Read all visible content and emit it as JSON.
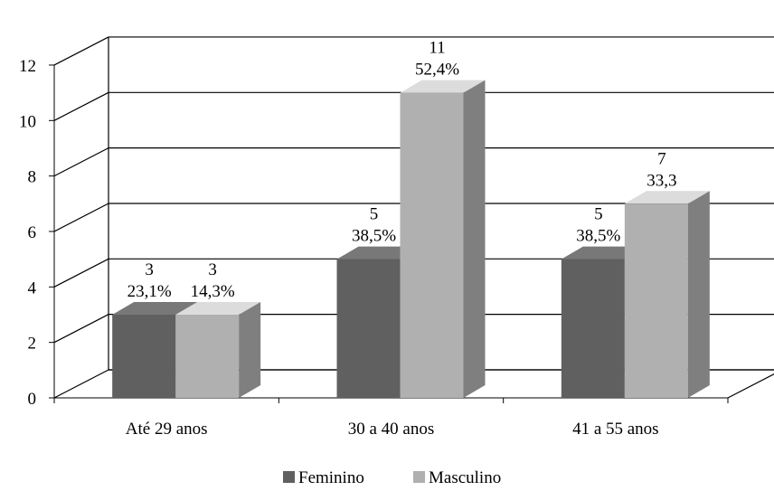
{
  "chart_data": {
    "type": "bar",
    "categories": [
      "Até 29 anos",
      "30 a 40 anos",
      "41 a 55 anos"
    ],
    "series": [
      {
        "name": "Feminino",
        "values": [
          3,
          5,
          5
        ],
        "labels": [
          "23,1%",
          "38,5%",
          "38,5%"
        ],
        "color": "#606060"
      },
      {
        "name": "Masculino",
        "values": [
          3,
          11,
          7
        ],
        "labels": [
          "14,3%",
          "52,4%",
          "33,3"
        ],
        "color": "#b0b0b0"
      }
    ],
    "yticks": [
      "0",
      "2",
      "4",
      "6",
      "8",
      "10",
      "12"
    ],
    "ylim": [
      0,
      12
    ],
    "grid": true,
    "legend_position": "bottom",
    "three_d": true
  }
}
